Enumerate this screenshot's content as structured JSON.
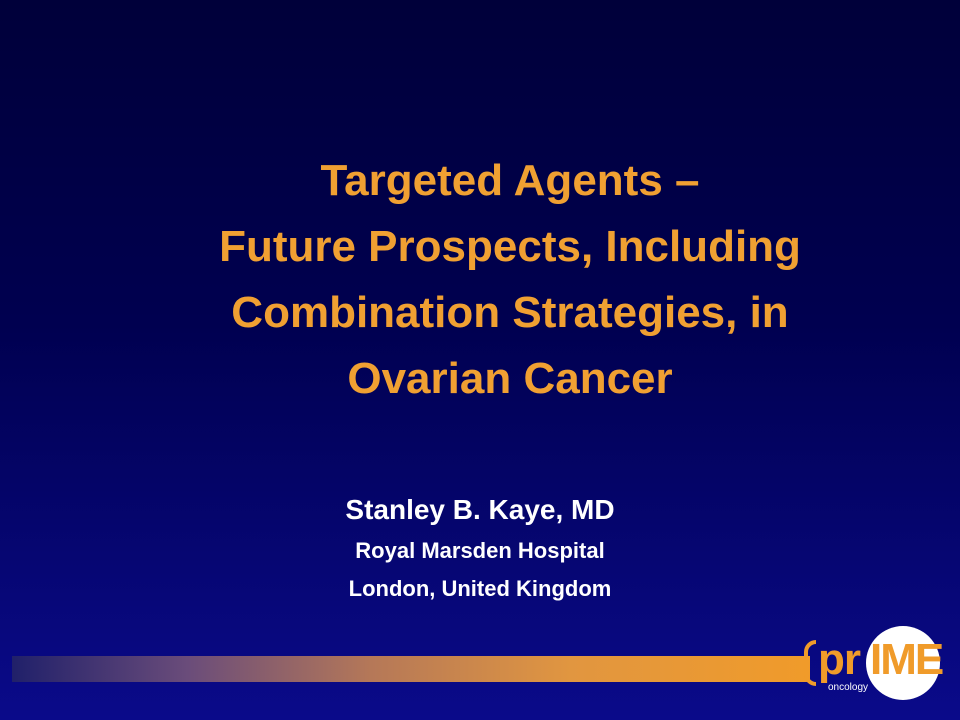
{
  "title": {
    "lines": [
      "Targeted Agents –",
      "Future Prospects, Including",
      "Combination Strategies, in",
      "Ovarian Cancer"
    ],
    "color": "#f0a032"
  },
  "author": {
    "name": "Stanley B. Kaye, MD",
    "institution": "Royal Marsden Hospital",
    "location": "London, United Kingdom"
  },
  "logo": {
    "text_pr": "pr",
    "text_ime": "IME",
    "subtitle": "oncology",
    "accent_color": "#f09b2a"
  },
  "colors": {
    "background_top": "#00003a",
    "background_bottom": "#0a0a8a",
    "author_text": "#ffffff"
  }
}
